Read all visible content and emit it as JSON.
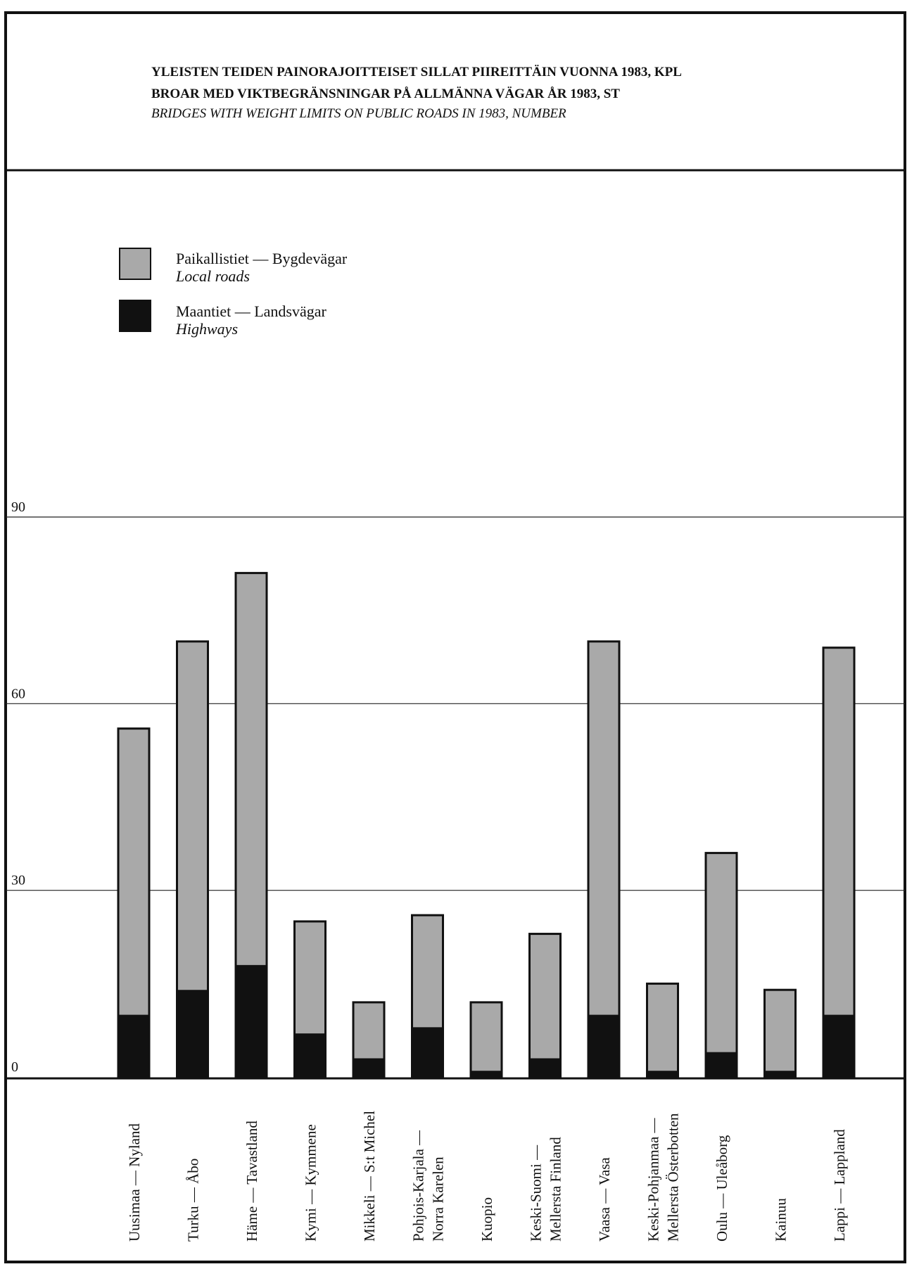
{
  "chart_data": {
    "type": "bar",
    "stacked": true,
    "title": "YLEISTEN TEIDEN PAINORAJOITTEISET SILLAT PIIREITTÄIN VUONNA 1983, KPL",
    "subtitle_sv": "BROAR MED VIKTBEGRÄNSNINGAR PÅ ALLMÄNNA VÄGAR ÅR 1983, ST",
    "subtitle_en": "BRIDGES WITH WEIGHT LIMITS ON PUBLIC ROADS IN 1983, NUMBER",
    "ylim": [
      0,
      90
    ],
    "yticks": [
      "0",
      "30",
      "60",
      "90"
    ],
    "grid": true,
    "legend_position": "top-left",
    "categories": [
      [
        "Uusimaa — Nyland"
      ],
      [
        "Turku — Åbo"
      ],
      [
        "Häme — Tavastland"
      ],
      [
        "Kymi — Kymmene"
      ],
      [
        "Mikkeli — S:t Michel"
      ],
      [
        "Pohjois-Karjala —",
        "Norra Karelen"
      ],
      [
        "Kuopio"
      ],
      [
        "Keski-Suomi —",
        "Mellersta Finland"
      ],
      [
        "Vaasa — Vasa"
      ],
      [
        "Keski-Pohjanmaa —",
        "Mellersta Österbotten"
      ],
      [
        "Oulu — Uleåborg"
      ],
      [
        "Kainuu"
      ],
      [
        "Lappi — Lappland"
      ]
    ],
    "series": [
      {
        "name": "Maantiet — Landsvägar",
        "name_en": "Highways",
        "color": "#111111",
        "values": [
          10,
          14,
          18,
          7,
          3,
          8,
          1,
          3,
          10,
          1,
          4,
          1,
          10
        ]
      },
      {
        "name": "Paikallistiet — Bygdevägar",
        "name_en": "Local roads",
        "color": "#a9a9a9",
        "values": [
          46,
          56,
          63,
          18,
          9,
          18,
          11,
          20,
          60,
          14,
          32,
          13,
          59
        ]
      }
    ]
  }
}
